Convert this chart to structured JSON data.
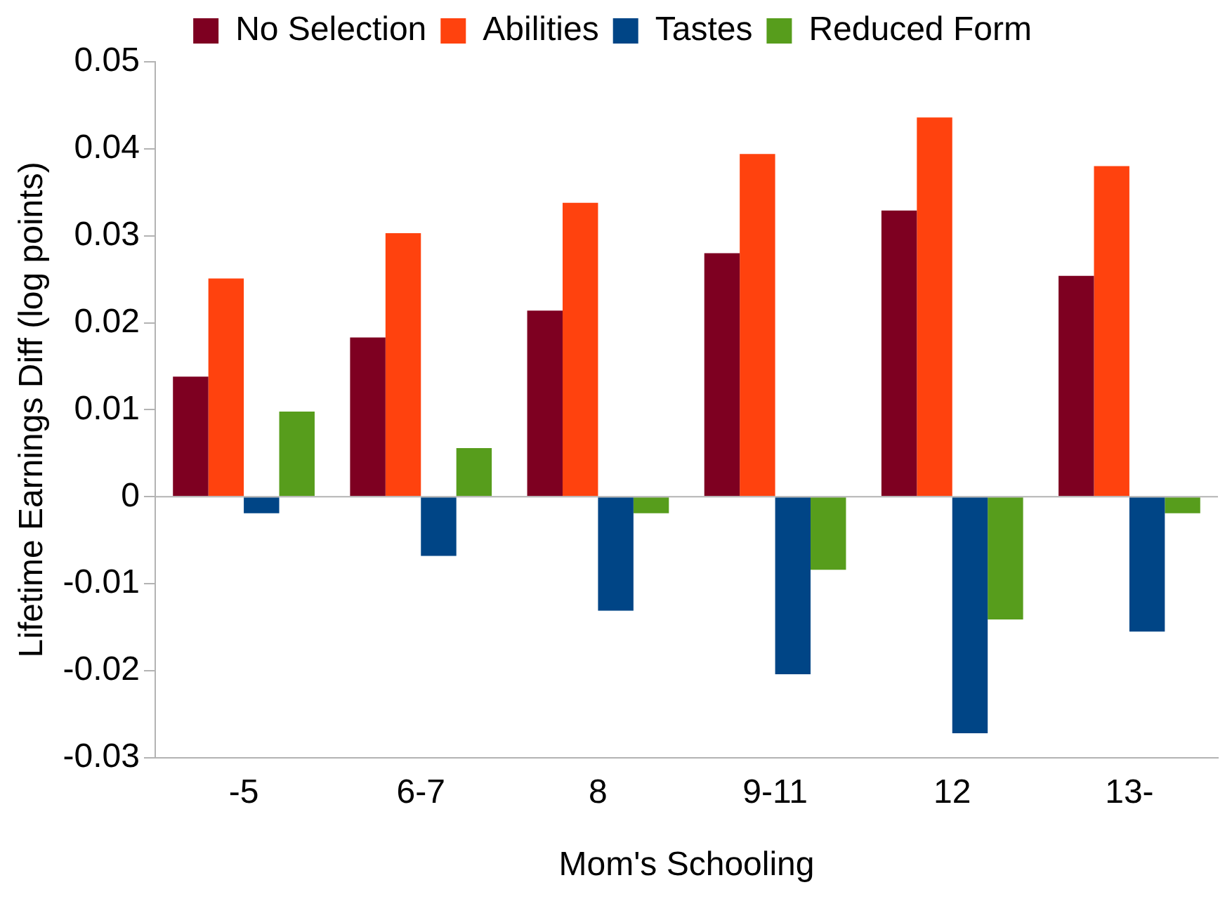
{
  "chart_data": {
    "type": "bar",
    "xlabel": "Mom's Schooling",
    "ylabel": "Lifetime Earnings Diff (log points)",
    "categories": [
      "-5",
      "6-7",
      "8",
      "9-11",
      "12",
      "13-"
    ],
    "series": [
      {
        "name": "No Selection",
        "color": "#7e0021",
        "values": [
          0.0138,
          0.0183,
          0.0214,
          0.028,
          0.0329,
          0.0254
        ]
      },
      {
        "name": "Abilities",
        "color": "#ff420e",
        "values": [
          0.0251,
          0.0303,
          0.0338,
          0.0394,
          0.0436,
          0.038
        ]
      },
      {
        "name": "Tastes",
        "color": "#004586",
        "values": [
          -0.0019,
          -0.0068,
          -0.0131,
          -0.0204,
          -0.0272,
          -0.0155
        ]
      },
      {
        "name": "Reduced Form",
        "color": "#579d1c",
        "values": [
          0.0098,
          0.0056,
          -0.0019,
          -0.0084,
          -0.0141,
          -0.0019
        ]
      }
    ],
    "ylim": [
      -0.03,
      0.05
    ],
    "yticks": [
      -0.03,
      -0.02,
      -0.01,
      0,
      0.01,
      0.02,
      0.03,
      0.04,
      0.05
    ],
    "ref_lines": [
      {
        "axis": "y",
        "value": 0,
        "color": "#b3b3b3"
      }
    ],
    "grid": false,
    "legend": "top"
  }
}
